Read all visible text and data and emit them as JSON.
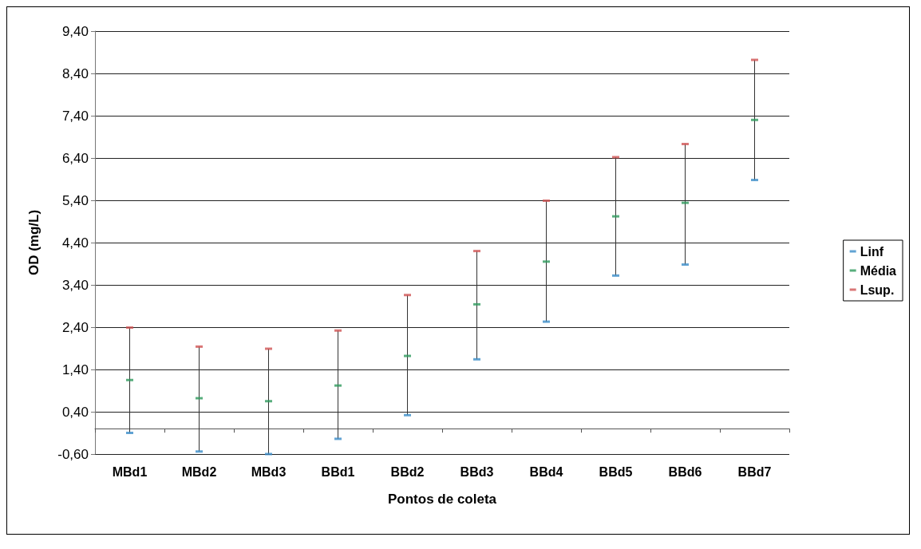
{
  "chart_data": {
    "type": "scatter",
    "xlabel": "Pontos de coleta",
    "ylabel": "OD (mg/L)",
    "categories": [
      "MBd1",
      "MBd2",
      "MBd3",
      "BBd1",
      "BBd2",
      "BBd3",
      "BBd4",
      "BBd5",
      "BBd6",
      "BBd7"
    ],
    "series": [
      {
        "name": "Linf",
        "color": "#3a8cc8",
        "values": [
          -0.1,
          -0.54,
          -0.6,
          -0.24,
          0.32,
          1.64,
          2.53,
          3.62,
          3.88,
          5.88
        ]
      },
      {
        "name": "Média",
        "color": "#2e9a5c",
        "values": [
          1.15,
          0.72,
          0.65,
          1.02,
          1.72,
          2.94,
          3.95,
          5.02,
          5.34,
          7.3
        ]
      },
      {
        "name": "Lsup.",
        "color": "#d05454",
        "values": [
          2.39,
          1.94,
          1.89,
          2.32,
          3.16,
          4.2,
          5.39,
          6.42,
          6.73,
          8.72
        ]
      }
    ],
    "ylim": [
      -0.6,
      9.4
    ],
    "yticks": [
      {
        "value": -0.6,
        "label": "-0,60"
      },
      {
        "value": 0.4,
        "label": "0,40"
      },
      {
        "value": 1.4,
        "label": "1,40"
      },
      {
        "value": 2.4,
        "label": "2,40"
      },
      {
        "value": 3.4,
        "label": "3,40"
      },
      {
        "value": 4.4,
        "label": "4,40"
      },
      {
        "value": 5.4,
        "label": "5,40"
      },
      {
        "value": 6.4,
        "label": "6,40"
      },
      {
        "value": 7.4,
        "label": "7,40"
      },
      {
        "value": 8.4,
        "label": "8,40"
      },
      {
        "value": 9.4,
        "label": "9,40"
      }
    ],
    "grid": "y",
    "legend": "right"
  }
}
